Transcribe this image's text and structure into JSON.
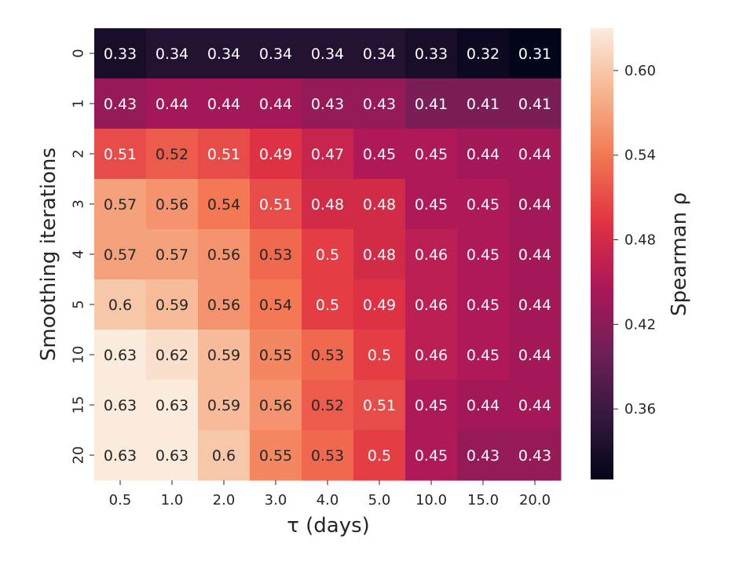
{
  "chart_data": {
    "type": "heatmap",
    "title": "",
    "xlabel": "τ (days)",
    "ylabel": "Smoothing iterations",
    "x_categories": [
      "0.5",
      "1.0",
      "2.0",
      "3.0",
      "4.0",
      "5.0",
      "10.0",
      "15.0",
      "20.0"
    ],
    "y_categories": [
      "0",
      "1",
      "2",
      "3",
      "4",
      "5",
      "10",
      "15",
      "20"
    ],
    "values": [
      [
        0.33,
        0.34,
        0.34,
        0.34,
        0.34,
        0.34,
        0.33,
        0.32,
        0.31
      ],
      [
        0.43,
        0.44,
        0.44,
        0.44,
        0.43,
        0.43,
        0.41,
        0.41,
        0.41
      ],
      [
        0.51,
        0.52,
        0.51,
        0.49,
        0.47,
        0.45,
        0.45,
        0.44,
        0.44
      ],
      [
        0.57,
        0.56,
        0.54,
        0.51,
        0.48,
        0.48,
        0.45,
        0.45,
        0.44
      ],
      [
        0.57,
        0.57,
        0.56,
        0.53,
        0.5,
        0.48,
        0.46,
        0.45,
        0.44
      ],
      [
        0.6,
        0.59,
        0.56,
        0.54,
        0.5,
        0.49,
        0.46,
        0.45,
        0.44
      ],
      [
        0.63,
        0.62,
        0.59,
        0.55,
        0.53,
        0.5,
        0.46,
        0.45,
        0.44
      ],
      [
        0.63,
        0.63,
        0.59,
        0.56,
        0.52,
        0.51,
        0.45,
        0.44,
        0.44
      ],
      [
        0.63,
        0.63,
        0.6,
        0.55,
        0.53,
        0.5,
        0.45,
        0.43,
        0.43
      ]
    ],
    "cell_labels": [
      [
        "0.33",
        "0.34",
        "0.34",
        "0.34",
        "0.34",
        "0.34",
        "0.33",
        "0.32",
        "0.31"
      ],
      [
        "0.43",
        "0.44",
        "0.44",
        "0.44",
        "0.43",
        "0.43",
        "0.41",
        "0.41",
        "0.41"
      ],
      [
        "0.51",
        "0.52",
        "0.51",
        "0.49",
        "0.47",
        "0.45",
        "0.45",
        "0.44",
        "0.44"
      ],
      [
        "0.57",
        "0.56",
        "0.54",
        "0.51",
        "0.48",
        "0.48",
        "0.45",
        "0.45",
        "0.44"
      ],
      [
        "0.57",
        "0.57",
        "0.56",
        "0.53",
        "0.5",
        "0.48",
        "0.46",
        "0.45",
        "0.44"
      ],
      [
        "0.6",
        "0.59",
        "0.56",
        "0.54",
        "0.5",
        "0.49",
        "0.46",
        "0.45",
        "0.44"
      ],
      [
        "0.63",
        "0.62",
        "0.59",
        "0.55",
        "0.53",
        "0.5",
        "0.46",
        "0.45",
        "0.44"
      ],
      [
        "0.63",
        "0.63",
        "0.59",
        "0.56",
        "0.52",
        "0.51",
        "0.45",
        "0.44",
        "0.44"
      ],
      [
        "0.63",
        "0.63",
        "0.6",
        "0.55",
        "0.53",
        "0.5",
        "0.45",
        "0.43",
        "0.43"
      ]
    ],
    "colorbar": {
      "label": "Spearman ρ",
      "range": [
        0.31,
        0.63
      ],
      "ticks": [
        "0.36",
        "0.42",
        "0.48",
        "0.54",
        "0.60"
      ],
      "colormap": "rocket",
      "colormap_stops": [
        "#03051a",
        "#36193e",
        "#701f57",
        "#ad1759",
        "#e13342",
        "#f37651",
        "#f6b48f",
        "#faebdd"
      ]
    },
    "grid": false,
    "legend": "colorbar-right"
  }
}
